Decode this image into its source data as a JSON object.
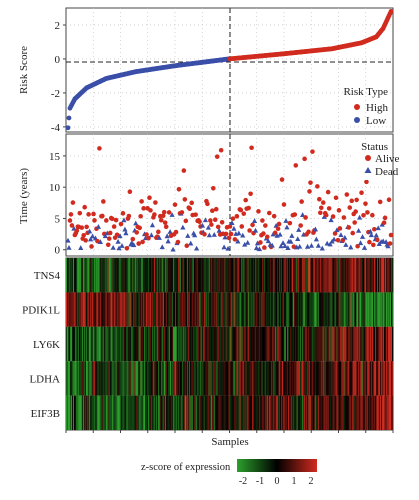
{
  "chart_data": [
    {
      "type": "scatter",
      "panel": "risk-score",
      "ylabel": "Risk Score",
      "xlabel": "",
      "ylim": [
        -4.3,
        3.0
      ],
      "yticks": [
        -4,
        -2,
        0,
        2
      ],
      "n_samples": 330,
      "cutoff_index": 165,
      "grid": true,
      "legend_title": "Risk Type",
      "legend_position": "bottom-right",
      "series": [
        {
          "name": "High",
          "color": "#d12b1f",
          "description": "samples ranked above median, risk score rising from 0 to about 2.8"
        },
        {
          "name": "Low",
          "color": "#3a4fa8",
          "description": "samples ranked below median, risk score rising from about -4.0 to 0"
        }
      ],
      "curve_points": [
        [
          1,
          -4.05
        ],
        [
          3,
          -2.9
        ],
        [
          8,
          -2.35
        ],
        [
          20,
          -1.7
        ],
        [
          40,
          -1.15
        ],
        [
          70,
          -0.75
        ],
        [
          110,
          -0.4
        ],
        [
          165,
          0.0
        ],
        [
          220,
          0.3
        ],
        [
          270,
          0.6
        ],
        [
          300,
          0.95
        ],
        [
          315,
          1.3
        ],
        [
          322,
          1.8
        ],
        [
          326,
          2.3
        ],
        [
          330,
          2.8
        ]
      ]
    },
    {
      "type": "scatter",
      "panel": "survival-status",
      "ylabel": "Time (years)",
      "ylim": [
        -1,
        18.5
      ],
      "yticks": [
        0,
        5,
        10,
        15
      ],
      "grid": true,
      "legend_title": "Status",
      "legend_position": "top-right",
      "series": [
        {
          "name": "Alive",
          "color": "#d12b1f",
          "marker": "circle",
          "description": "survival times mostly 1-12 years, spread across all samples"
        },
        {
          "name": "Dead",
          "color": "#3a4fa8",
          "marker": "triangle",
          "description": "survival times mostly 0-5 years, denser among high-risk samples"
        }
      ]
    },
    {
      "type": "heatmap",
      "panel": "expression",
      "xlabel": "Samples",
      "rows": [
        "TNS4",
        "PDIK1L",
        "LY6K",
        "LDHA",
        "EIF3B"
      ],
      "colorbar_title": "z-score of expression",
      "colorbar_ticks": [
        "-2",
        "-1",
        "0",
        "1",
        "2"
      ],
      "colorscale": [
        "#2ca02c",
        "#000000",
        "#d12b1f"
      ],
      "row_trends": [
        {
          "gene": "TNS4",
          "trend": "rises with risk score: green on the left, red on the right"
        },
        {
          "gene": "PDIK1L",
          "trend": "falls with risk score: red on the left, green on the right"
        },
        {
          "gene": "LY6K",
          "trend": "rises with risk score"
        },
        {
          "gene": "LDHA",
          "trend": "rises with risk score"
        },
        {
          "gene": "EIF3B",
          "trend": "rises with risk score"
        }
      ]
    }
  ]
}
